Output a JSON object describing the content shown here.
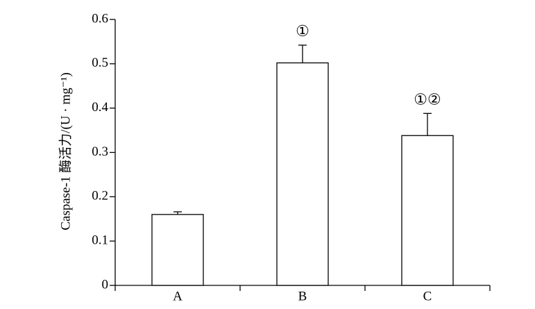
{
  "chart_data": {
    "type": "bar",
    "y_label": "Caspase-1 酶活力/(U · mg⁻¹)",
    "categories": [
      "A",
      "B",
      "C"
    ],
    "values": [
      0.16,
      0.502,
      0.338
    ],
    "errors": [
      0.006,
      0.04,
      0.05
    ],
    "annotations": [
      null,
      "①",
      "①②"
    ],
    "color": "#ffffff",
    "ylim": [
      0,
      0.6
    ],
    "yticks": [
      0,
      0.1,
      0.2,
      0.3,
      0.4,
      0.5,
      0.6
    ]
  }
}
